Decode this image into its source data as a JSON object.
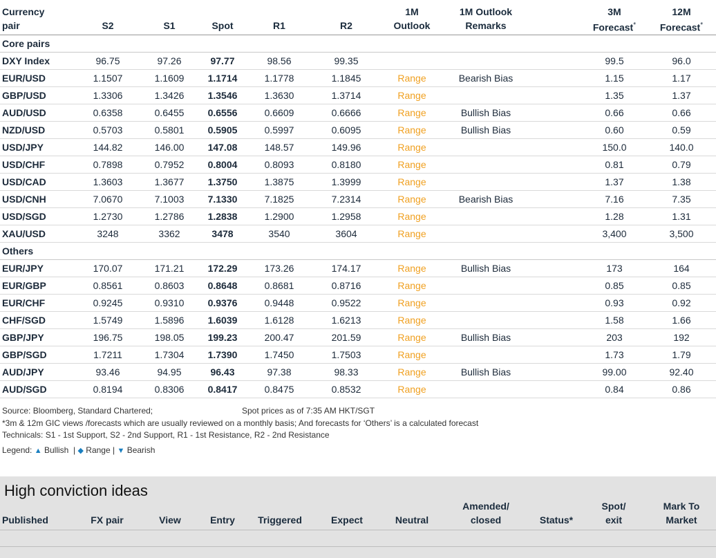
{
  "header": {
    "pair_l1": "Currency",
    "pair_l2": "pair",
    "s2": "S2",
    "s1": "S1",
    "spot": "Spot",
    "r1": "R1",
    "r2": "R2",
    "outlook_l1": "1M",
    "outlook_l2": "Outlook",
    "remarks_l1": "1M Outlook",
    "remarks_l2": "Remarks",
    "f3_l1": "3M",
    "f3_l2": "Forecast",
    "f12_l1": "12M",
    "f12_l2": "Forecast",
    "asterisk": "*"
  },
  "sections": {
    "core": "Core pairs",
    "others": "Others"
  },
  "rows": [
    {
      "pair": "DXY Index",
      "s2": "96.75",
      "s1": "97.26",
      "spot": "97.77",
      "r1": "98.56",
      "r2": "99.35",
      "outlook": "",
      "remarks": "",
      "f3": "99.5",
      "f12": "96.0"
    },
    {
      "pair": "EUR/USD",
      "s2": "1.1507",
      "s1": "1.1609",
      "spot": "1.1714",
      "r1": "1.1778",
      "r2": "1.1845",
      "outlook": "Range",
      "remarks": "Bearish Bias",
      "f3": "1.15",
      "f12": "1.17"
    },
    {
      "pair": "GBP/USD",
      "s2": "1.3306",
      "s1": "1.3426",
      "spot": "1.3546",
      "r1": "1.3630",
      "r2": "1.3714",
      "outlook": "Range",
      "remarks": "",
      "f3": "1.35",
      "f12": "1.37"
    },
    {
      "pair": "AUD/USD",
      "s2": "0.6358",
      "s1": "0.6455",
      "spot": "0.6556",
      "r1": "0.6609",
      "r2": "0.6666",
      "outlook": "Range",
      "remarks": "Bullish Bias",
      "f3": "0.66",
      "f12": "0.66"
    },
    {
      "pair": "NZD/USD",
      "s2": "0.5703",
      "s1": "0.5801",
      "spot": "0.5905",
      "r1": "0.5997",
      "r2": "0.6095",
      "outlook": "Range",
      "remarks": "Bullish Bias",
      "f3": "0.60",
      "f12": "0.59"
    },
    {
      "pair": "USD/JPY",
      "s2": "144.82",
      "s1": "146.00",
      "spot": "147.08",
      "r1": "148.57",
      "r2": "149.96",
      "outlook": "Range",
      "remarks": "",
      "f3": "150.0",
      "f12": "140.0"
    },
    {
      "pair": "USD/CHF",
      "s2": "0.7898",
      "s1": "0.7952",
      "spot": "0.8004",
      "r1": "0.8093",
      "r2": "0.8180",
      "outlook": "Range",
      "remarks": "",
      "f3": "0.81",
      "f12": "0.79"
    },
    {
      "pair": "USD/CAD",
      "s2": "1.3603",
      "s1": "1.3677",
      "spot": "1.3750",
      "r1": "1.3875",
      "r2": "1.3999",
      "outlook": "Range",
      "remarks": "",
      "f3": "1.37",
      "f12": "1.38"
    },
    {
      "pair": "USD/CNH",
      "s2": "7.0670",
      "s1": "7.1003",
      "spot": "7.1330",
      "r1": "7.1825",
      "r2": "7.2314",
      "outlook": "Range",
      "remarks": "Bearish Bias",
      "f3": "7.16",
      "f12": "7.35"
    },
    {
      "pair": "USD/SGD",
      "s2": "1.2730",
      "s1": "1.2786",
      "spot": "1.2838",
      "r1": "1.2900",
      "r2": "1.2958",
      "outlook": "Range",
      "remarks": "",
      "f3": "1.28",
      "f12": "1.31"
    },
    {
      "pair": "XAU/USD",
      "s2": "3248",
      "s1": "3362",
      "spot": "3478",
      "r1": "3540",
      "r2": "3604",
      "outlook": "Range",
      "remarks": "",
      "f3": "3,400",
      "f12": "3,500"
    },
    {
      "pair": "EUR/JPY",
      "s2": "170.07",
      "s1": "171.21",
      "spot": "172.29",
      "r1": "173.26",
      "r2": "174.17",
      "outlook": "Range",
      "remarks": "Bullish Bias",
      "f3": "173",
      "f12": "164"
    },
    {
      "pair": "EUR/GBP",
      "s2": "0.8561",
      "s1": "0.8603",
      "spot": "0.8648",
      "r1": "0.8681",
      "r2": "0.8716",
      "outlook": "Range",
      "remarks": "",
      "f3": "0.85",
      "f12": "0.85"
    },
    {
      "pair": "EUR/CHF",
      "s2": "0.9245",
      "s1": "0.9310",
      "spot": "0.9376",
      "r1": "0.9448",
      "r2": "0.9522",
      "outlook": "Range",
      "remarks": "",
      "f3": "0.93",
      "f12": "0.92"
    },
    {
      "pair": "CHF/SGD",
      "s2": "1.5749",
      "s1": "1.5896",
      "spot": "1.6039",
      "r1": "1.6128",
      "r2": "1.6213",
      "outlook": "Range",
      "remarks": "",
      "f3": "1.58",
      "f12": "1.66"
    },
    {
      "pair": "GBP/JPY",
      "s2": "196.75",
      "s1": "198.05",
      "spot": "199.23",
      "r1": "200.47",
      "r2": "201.59",
      "outlook": "Range",
      "remarks": "Bullish Bias",
      "f3": "203",
      "f12": "192"
    },
    {
      "pair": "GBP/SGD",
      "s2": "1.7211",
      "s1": "1.7304",
      "spot": "1.7390",
      "r1": "1.7450",
      "r2": "1.7503",
      "outlook": "Range",
      "remarks": "",
      "f3": "1.73",
      "f12": "1.79"
    },
    {
      "pair": "AUD/JPY",
      "s2": "93.46",
      "s1": "94.95",
      "spot": "96.43",
      "r1": "97.38",
      "r2": "98.33",
      "outlook": "Range",
      "remarks": "Bullish Bias",
      "f3": "99.00",
      "f12": "92.40"
    },
    {
      "pair": "AUD/SGD",
      "s2": "0.8194",
      "s1": "0.8306",
      "spot": "0.8417",
      "r1": "0.8475",
      "r2": "0.8532",
      "outlook": "Range",
      "remarks": "",
      "f3": "0.84",
      "f12": "0.86"
    }
  ],
  "notes": {
    "source": "Source: Bloomberg, Standard Chartered;",
    "spot_time": "Spot prices as of 7:35 AM HKT/SGT",
    "footnote": "*3m & 12m GIC views /forecasts which are usually reviewed on a monthly basis; And forecasts for ‘Others’ is a calculated forecast",
    "technicals": "Technicals: S1 - 1st Support, S2 - 2nd Support, R1 - 1st Resistance, R2 - 2nd Resistance"
  },
  "legend": {
    "label": "Legend:",
    "bullish": "Bullish",
    "range": "Range",
    "bearish": "Bearish",
    "sep": "|",
    "bullish_icon": "triangle-up",
    "range_icon": "diamond",
    "bearish_icon": "triangle-down"
  },
  "ideas": {
    "title": "High conviction ideas",
    "published": "Published",
    "fx_pair": "FX pair",
    "view": "View",
    "entry": "Entry",
    "triggered": "Triggered",
    "expect": "Expect",
    "neutral": "Neutral",
    "amended_l1": "Amended/",
    "amended_l2": "closed",
    "status": "Status*",
    "spot_l1": "Spot/",
    "spot_l2": "exit",
    "mtm_l1": "Mark To",
    "mtm_l2": "Market"
  },
  "colors": {
    "range": "#f0a020",
    "legend_icon": "#1a7fc0",
    "panel_bg": "#e2e2e2"
  }
}
